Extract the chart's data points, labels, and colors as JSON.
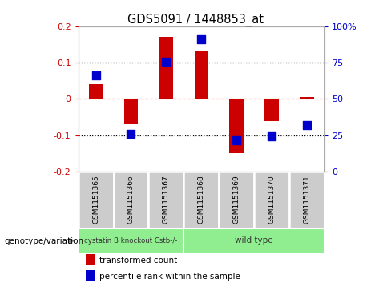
{
  "title": "GDS5091 / 1448853_at",
  "samples": [
    "GSM1151365",
    "GSM1151366",
    "GSM1151367",
    "GSM1151368",
    "GSM1151369",
    "GSM1151370",
    "GSM1151371"
  ],
  "red_bars": [
    0.04,
    -0.07,
    0.17,
    0.13,
    -0.15,
    -0.06,
    0.005
  ],
  "blue_dots": [
    0.065,
    -0.097,
    0.103,
    0.163,
    -0.113,
    -0.103,
    -0.072
  ],
  "ylim_left": [
    -0.2,
    0.2
  ],
  "ylim_right": [
    0,
    100
  ],
  "yticks_left": [
    -0.2,
    -0.1,
    0.0,
    0.1,
    0.2
  ],
  "yticks_right": [
    0,
    25,
    50,
    75,
    100
  ],
  "ytick_labels_left": [
    "-0.2",
    "-0.1",
    "0",
    "0.1",
    "0.2"
  ],
  "ytick_labels_right": [
    "0",
    "25",
    "50",
    "75",
    "100%"
  ],
  "group1_label": "cystatin B knockout Cstb-/-",
  "group2_label": "wild type",
  "group1_color": "#90EE90",
  "group2_color": "#90EE90",
  "genotype_label": "genotype/variation",
  "legend1_label": "transformed count",
  "legend2_label": "percentile rank within the sample",
  "red_color": "#CC0000",
  "blue_color": "#0000CC",
  "bar_width": 0.4,
  "dot_size": 55,
  "sample_box_color": "#cccccc",
  "arrow_color": "#888888"
}
